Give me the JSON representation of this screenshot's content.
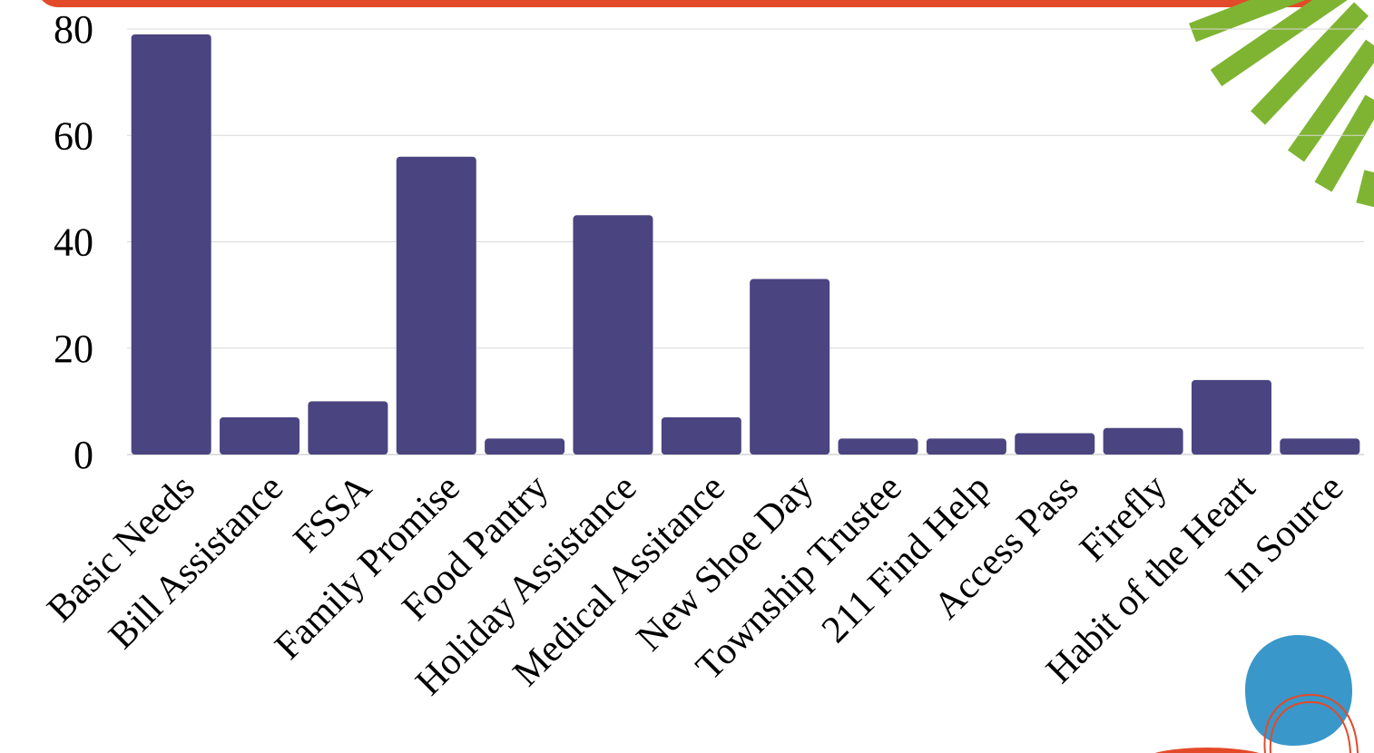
{
  "colors": {
    "bar": "#4a4480",
    "gridline": "#d9d9d9",
    "baseline": "#bfbfbf",
    "top_banner": "#e34a2a",
    "rays": "#7fb432",
    "circle": "#3a97c9",
    "circle_outline": "#e34a2a"
  },
  "chart_data": {
    "type": "bar",
    "title": "",
    "xlabel": "",
    "ylabel": "",
    "ylim": [
      0,
      80
    ],
    "y_ticks": [
      0,
      20,
      40,
      60,
      80
    ],
    "grid": true,
    "legend": "none",
    "categories": [
      "Basic Needs",
      "Bill Assistance",
      "FSSA",
      "Family Promise",
      "Food Pantry",
      "Holiday Assistance",
      "Medical Assitance",
      "New Shoe Day",
      "Township Trustee",
      "211 Find Help",
      "Access Pass",
      "Firefly",
      "Habit of the Heart",
      "In Source"
    ],
    "values": [
      79,
      7,
      10,
      56,
      3,
      45,
      7,
      33,
      3,
      3,
      4,
      5,
      14,
      3
    ]
  }
}
